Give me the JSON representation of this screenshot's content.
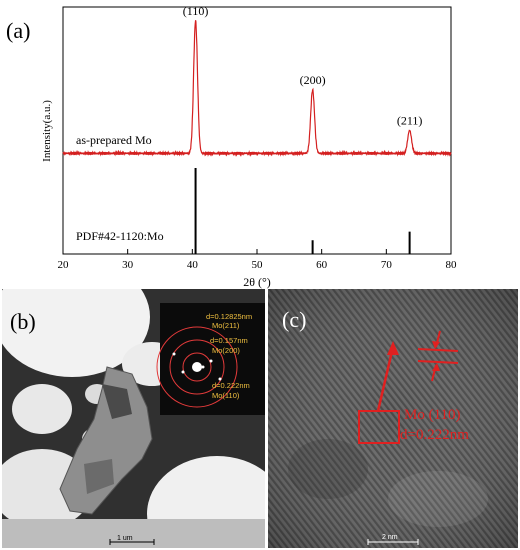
{
  "panels": {
    "a": {
      "label": "(a)",
      "chart_data": {
        "type": "line",
        "xlabel": "2θ (°)",
        "ylabel": "Intensity(a.u.)",
        "xlim": [
          20,
          80
        ],
        "xticks": [
          20,
          30,
          40,
          50,
          60,
          70,
          80
        ],
        "series": [
          {
            "name": "as-prepared Mo",
            "color": "#d42020",
            "baseline": 0.06,
            "peaks": [
              {
                "x": 40.5,
                "height": 0.98,
                "label": "(110)"
              },
              {
                "x": 58.6,
                "height": 0.5,
                "label": "(200)"
              },
              {
                "x": 73.6,
                "height": 0.22,
                "label": "(211)"
              }
            ]
          }
        ],
        "reference": {
          "name": "PDF#42-1120:Mo",
          "color": "#000000",
          "lines": [
            {
              "x": 40.5,
              "height": 1.0
            },
            {
              "x": 58.6,
              "height": 0.16
            },
            {
              "x": 73.6,
              "height": 0.26
            }
          ]
        }
      }
    },
    "b": {
      "label": "(b)",
      "scale_bar": "1 um",
      "saed_rings": [
        {
          "d": "d=0.12825nm",
          "plane": "Mo(211)"
        },
        {
          "d": "d=0.157nm",
          "plane": "Mo(200)"
        },
        {
          "d": "d=0.222nm",
          "plane": "Mo(110)"
        }
      ]
    },
    "c": {
      "label": "(c)",
      "scale_bar": "2 nm",
      "annotation_line1": "Mo (110)",
      "annotation_line2": "d=0.222nm"
    }
  }
}
